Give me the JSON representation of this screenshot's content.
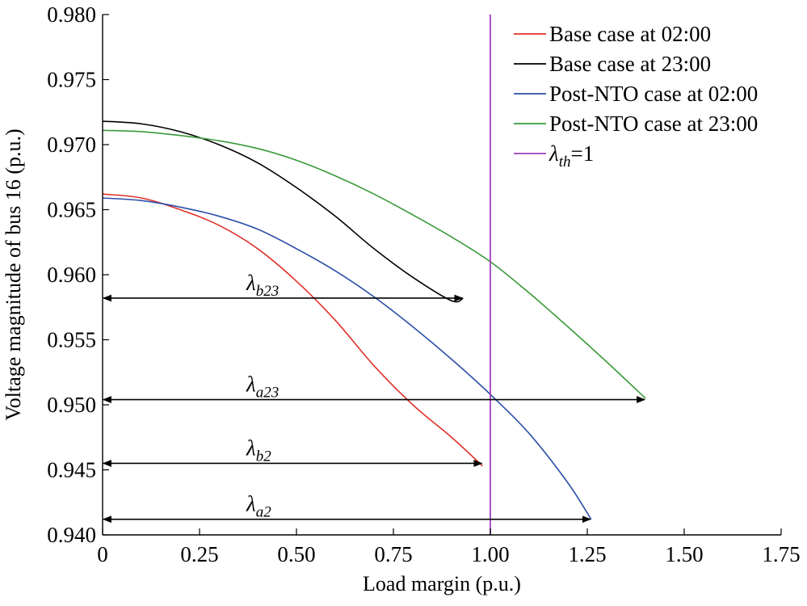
{
  "chart_data": {
    "type": "line",
    "title": "",
    "xlabel": "Load margin (p.u.)",
    "ylabel": "Voltage magnitude of bus 16 (p.u.)",
    "xlim": [
      0,
      1.75
    ],
    "ylim": [
      0.94,
      0.98
    ],
    "xticks": [
      0,
      0.25,
      0.5,
      0.75,
      1.0,
      1.25,
      1.5,
      1.75
    ],
    "xtick_labels": [
      "0",
      "0.25",
      "0.50",
      "0.75",
      "1.00",
      "1.25",
      "1.50",
      "1.75"
    ],
    "yticks": [
      0.94,
      0.945,
      0.95,
      0.955,
      0.96,
      0.965,
      0.97,
      0.975,
      0.98
    ],
    "ytick_labels": [
      "0.940",
      "0.945",
      "0.950",
      "0.955",
      "0.960",
      "0.965",
      "0.970",
      "0.975",
      "0.980"
    ],
    "grid": false,
    "legend_position": "top-right",
    "series": [
      {
        "name": "Base case at 02:00",
        "color": "#e0302a",
        "x": [
          0.0,
          0.1,
          0.2,
          0.3,
          0.4,
          0.5,
          0.6,
          0.7,
          0.8,
          0.9,
          0.98
        ],
        "y": [
          0.9662,
          0.9659,
          0.965,
          0.9638,
          0.962,
          0.9595,
          0.9565,
          0.953,
          0.95,
          0.9475,
          0.9453
        ]
      },
      {
        "name": "Base case at 23:00",
        "color": "#000000",
        "x": [
          0.0,
          0.1,
          0.2,
          0.3,
          0.4,
          0.5,
          0.6,
          0.7,
          0.8,
          0.9,
          0.93
        ],
        "y": [
          0.9718,
          0.9716,
          0.971,
          0.97,
          0.9686,
          0.9667,
          0.9645,
          0.962,
          0.9598,
          0.958,
          0.9582
        ]
      },
      {
        "name": "Post-NTO case at 02:00",
        "color": "#2b4fa8",
        "x": [
          0.0,
          0.1,
          0.2,
          0.3,
          0.4,
          0.5,
          0.6,
          0.7,
          0.8,
          0.9,
          1.0,
          1.1,
          1.2,
          1.26
        ],
        "y": [
          0.9659,
          0.9657,
          0.9652,
          0.9645,
          0.9635,
          0.962,
          0.9603,
          0.9583,
          0.956,
          0.9535,
          0.9508,
          0.9478,
          0.944,
          0.9412
        ]
      },
      {
        "name": "Post-NTO case at 23:00",
        "color": "#3a9a3a",
        "x": [
          0.0,
          0.1,
          0.2,
          0.3,
          0.4,
          0.5,
          0.6,
          0.7,
          0.8,
          0.9,
          1.0,
          1.1,
          1.2,
          1.3,
          1.4
        ],
        "y": [
          0.9711,
          0.971,
          0.9707,
          0.9703,
          0.9697,
          0.9688,
          0.9676,
          0.9662,
          0.9646,
          0.9629,
          0.961,
          0.9586,
          0.956,
          0.9533,
          0.9505
        ]
      }
    ],
    "threshold_line": {
      "label": "λth=1",
      "x": 1.0,
      "color": "#a040c0"
    },
    "annotations": [
      {
        "label": "λb23",
        "main": "λ",
        "sub": "b23",
        "x_end": 0.93,
        "y": 0.9582
      },
      {
        "label": "λa23",
        "main": "λ",
        "sub": "a23",
        "x_end": 1.4,
        "y": 0.9504
      },
      {
        "label": "λb2",
        "main": "λ",
        "sub": "b2",
        "x_end": 0.98,
        "y": 0.9455
      },
      {
        "label": "λa2",
        "main": "λ",
        "sub": "a2",
        "x_end": 1.26,
        "y": 0.9412
      }
    ]
  }
}
